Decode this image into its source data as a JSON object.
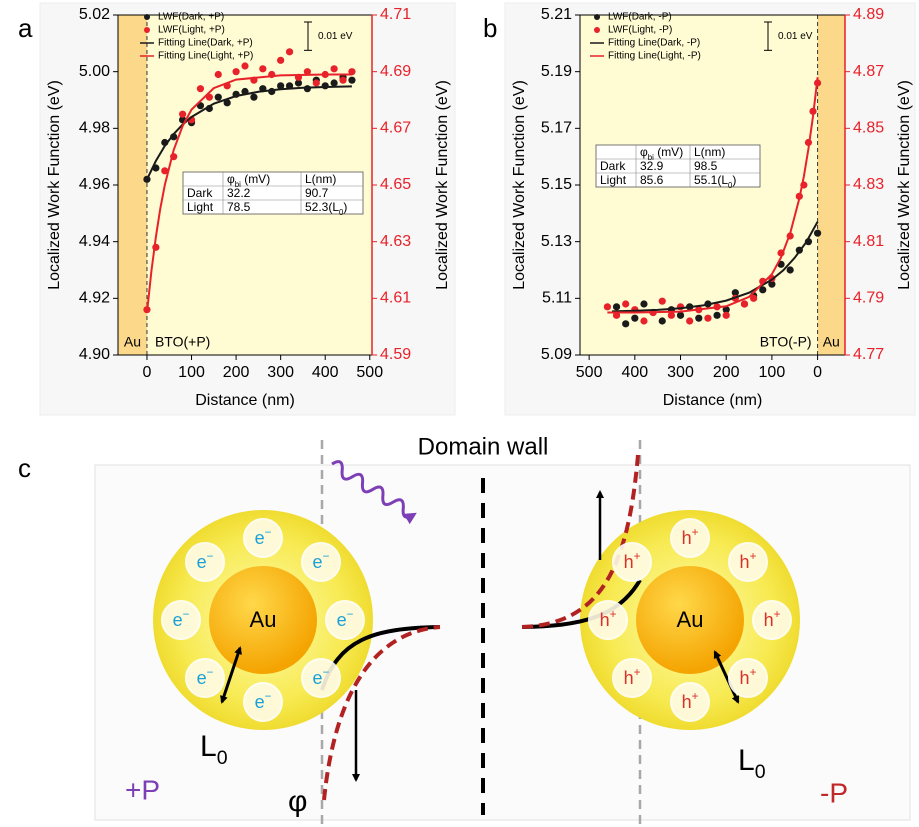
{
  "panel_labels": [
    "a",
    "b",
    "c"
  ],
  "chart_data": [
    {
      "type": "scatter",
      "x_label": "Distance (nm)",
      "y_label": "Localized Work Function (eV)",
      "y2_label": "Localized Work Function (eV)",
      "xlim": [
        -65,
        505
      ],
      "xticks": [
        0,
        100,
        200,
        300,
        400,
        500
      ],
      "ylim": [
        4.9,
        5.02
      ],
      "yticks": [
        {
          "value": 4.9,
          "label": "4.90"
        },
        4.92,
        4.94,
        4.96,
        4.98,
        {
          "value": 5.0,
          "label": "5.00"
        },
        5.02
      ],
      "y2lim": [
        4.59,
        4.71
      ],
      "y2ticks": [
        4.59,
        4.61,
        4.63,
        4.65,
        4.67,
        4.69,
        4.71
      ],
      "y2_color": "#e8222a",
      "background": "#fffbd2",
      "legend": "upper left",
      "region": {
        "label": "Au",
        "from": -65,
        "to": 0,
        "color": "#fcd98a"
      },
      "sample_label": "BTO(+P)",
      "scale_bar": {
        "value": 0.01,
        "label": "0.01 eV"
      },
      "series": [
        {
          "name": "LWF(Dark, +P)",
          "color": "#1a1a1a",
          "style": "markers",
          "x": [
            0,
            20,
            40,
            60,
            80,
            100,
            120,
            140,
            160,
            180,
            200,
            220,
            240,
            260,
            280,
            300,
            320,
            340,
            360,
            380,
            400,
            420,
            440,
            460
          ],
          "values": [
            4.962,
            4.966,
            4.975,
            4.977,
            4.983,
            4.982,
            4.988,
            4.987,
            4.991,
            4.989,
            4.992,
            4.993,
            4.991,
            4.994,
            4.993,
            4.995,
            4.995,
            4.996,
            4.994,
            4.997,
            4.995,
            4.996,
            4.998,
            4.997
          ]
        },
        {
          "name": "LWF(Light, +P)",
          "color": "#e8222a",
          "style": "markers",
          "axis": "y2",
          "x": [
            0,
            20,
            40,
            60,
            80,
            100,
            120,
            140,
            160,
            180,
            200,
            220,
            240,
            260,
            280,
            300,
            320,
            340,
            360,
            380,
            400,
            420,
            440,
            460
          ],
          "values": [
            4.606,
            4.628,
            4.655,
            4.66,
            4.675,
            4.673,
            4.684,
            4.681,
            4.689,
            4.685,
            4.69,
            4.692,
            4.687,
            4.691,
            4.689,
            4.694,
            4.697,
            4.688,
            4.69,
            4.686,
            4.689,
            4.691,
            4.687,
            4.69
          ]
        },
        {
          "name": "Fitting Line(Dark, +P)",
          "color": "#1a1a1a",
          "style": "line",
          "x": [
            0,
            20,
            40,
            60,
            80,
            100,
            150,
            200,
            250,
            300,
            350,
            400,
            460
          ],
          "values": [
            4.962,
            4.9685,
            4.9738,
            4.978,
            4.9813,
            4.984,
            4.9887,
            4.9914,
            4.9929,
            4.9938,
            4.9943,
            4.9946,
            4.9948
          ]
        },
        {
          "name": "Fitting Line(Light, +P)",
          "color": "#e8222a",
          "style": "line",
          "axis": "y2",
          "x": [
            0,
            10,
            20,
            30,
            40,
            60,
            80,
            100,
            150,
            200,
            300,
            400,
            460
          ],
          "values": [
            4.605,
            4.6196,
            4.6317,
            4.6417,
            4.65,
            4.6624,
            4.6708,
            4.6766,
            4.6842,
            4.6872,
            4.6887,
            4.689,
            4.689
          ]
        }
      ],
      "table": {
        "header": [
          {
            "text": "φ",
            "sub": "bi",
            "after": " (mV)"
          },
          "L(nm)"
        ],
        "rows": [
          {
            "label": "Dark",
            "cells": [
              "32.2",
              "90.7"
            ]
          },
          {
            "label": "Light",
            "cells": [
              "78.5",
              {
                "text": "52.3(L",
                "sub": "0",
                "after": ")"
              }
            ]
          }
        ]
      }
    },
    {
      "type": "scatter",
      "x_label": "Distance (nm)",
      "y_label": "Localized Work Function (eV)",
      "y2_label": "Localized Work Function (eV)",
      "xlim": [
        520,
        -60
      ],
      "xticks": [
        500,
        400,
        300,
        200,
        100,
        0
      ],
      "ylim": [
        5.09,
        5.21
      ],
      "yticks": [
        5.09,
        5.11,
        5.13,
        5.15,
        5.17,
        5.19,
        5.21
      ],
      "y2lim": [
        4.77,
        4.89
      ],
      "y2ticks": [
        4.77,
        4.79,
        4.81,
        4.83,
        4.85,
        4.87,
        4.89
      ],
      "y2_color": "#e8222a",
      "background": "#fffbd2",
      "legend": "upper left",
      "region": {
        "label": "Au",
        "from": 0,
        "to": -60,
        "color": "#fcd98a"
      },
      "sample_label": "BTO(-P)",
      "scale_bar": {
        "value": 0.01,
        "label": "0.01 eV"
      },
      "series": [
        {
          "name": "LWF(Dark, -P)",
          "color": "#1a1a1a",
          "style": "markers",
          "x": [
            0,
            20,
            40,
            60,
            80,
            100,
            120,
            140,
            160,
            180,
            200,
            220,
            240,
            260,
            280,
            300,
            320,
            340,
            360,
            380,
            400,
            420,
            440
          ],
          "values": [
            5.133,
            5.13,
            5.127,
            5.12,
            5.122,
            5.115,
            5.113,
            5.111,
            5.108,
            5.112,
            5.106,
            5.104,
            5.108,
            5.103,
            5.107,
            5.104,
            5.106,
            5.102,
            5.105,
            5.108,
            5.103,
            5.101,
            5.107
          ]
        },
        {
          "name": "LWF(Light, -P)",
          "color": "#e8222a",
          "style": "markers",
          "axis": "y2",
          "x": [
            0,
            10,
            20,
            30,
            40,
            60,
            80,
            100,
            120,
            140,
            160,
            180,
            200,
            220,
            240,
            260,
            280,
            300,
            320,
            340,
            360,
            380,
            400,
            420,
            440,
            460
          ],
          "values": [
            4.866,
            4.856,
            4.845,
            4.83,
            4.826,
            4.812,
            4.806,
            4.797,
            4.796,
            4.79,
            4.788,
            4.79,
            4.784,
            4.787,
            4.783,
            4.786,
            4.782,
            4.787,
            4.784,
            4.789,
            4.785,
            4.782,
            4.786,
            4.788,
            4.784,
            4.787
          ]
        },
        {
          "name": "Fitting Line(Dark, -P)",
          "color": "#1a1a1a",
          "style": "line",
          "x": [
            0,
            25,
            50,
            75,
            100,
            150,
            200,
            250,
            300,
            350,
            400,
            450
          ],
          "values": [
            5.137,
            5.1298,
            5.1243,
            5.1199,
            5.1166,
            5.112,
            5.1092,
            5.1075,
            5.1065,
            5.1059,
            5.1056,
            5.1054
          ]
        },
        {
          "name": "Fitting Line(Light, -P)",
          "color": "#e8222a",
          "style": "line",
          "axis": "y2",
          "x": [
            0,
            10,
            20,
            30,
            40,
            60,
            80,
            100,
            150,
            200,
            300,
            400,
            460
          ],
          "values": [
            4.868,
            4.8542,
            4.8427,
            4.8331,
            4.8252,
            4.813,
            4.8044,
            4.7985,
            4.7905,
            4.7872,
            4.7853,
            4.785,
            4.785
          ]
        }
      ],
      "table": {
        "header": [
          {
            "text": "φ",
            "sub": "bi",
            "after": " (mV)"
          },
          "L(nm)"
        ],
        "rows": [
          {
            "label": "Dark",
            "cells": [
              "32.9",
              "98.5"
            ]
          },
          {
            "label": "Light",
            "cells": [
              "85.6",
              {
                "text": "55.1(L",
                "sub": "0",
                "after": ")"
              }
            ]
          }
        ]
      }
    }
  ],
  "diagram": {
    "title": "Domain wall",
    "left": {
      "core": "Au",
      "polarization": "+P",
      "length": {
        "text": "L",
        "sub": "0"
      },
      "potential": "φ",
      "carriers": [
        {
          "text": "e",
          "sup": "−"
        },
        {
          "text": "e",
          "sup": "−"
        },
        {
          "text": "e",
          "sup": "−"
        },
        {
          "text": "e",
          "sup": "−"
        },
        {
          "text": "e",
          "sup": "−"
        },
        {
          "text": "e",
          "sup": "−"
        },
        {
          "text": "e",
          "sup": "−"
        },
        {
          "text": "e",
          "sup": "−"
        }
      ]
    },
    "right": {
      "core": "Au",
      "polarization": "-P",
      "length": {
        "text": "L",
        "sub": "0"
      },
      "carriers": [
        {
          "text": "h",
          "sup": "+"
        },
        {
          "text": "h",
          "sup": "+"
        },
        {
          "text": "h",
          "sup": "+"
        },
        {
          "text": "h",
          "sup": "+"
        },
        {
          "text": "h",
          "sup": "+"
        },
        {
          "text": "h",
          "sup": "+"
        },
        {
          "text": "h",
          "sup": "+"
        },
        {
          "text": "h",
          "sup": "+"
        }
      ]
    }
  }
}
